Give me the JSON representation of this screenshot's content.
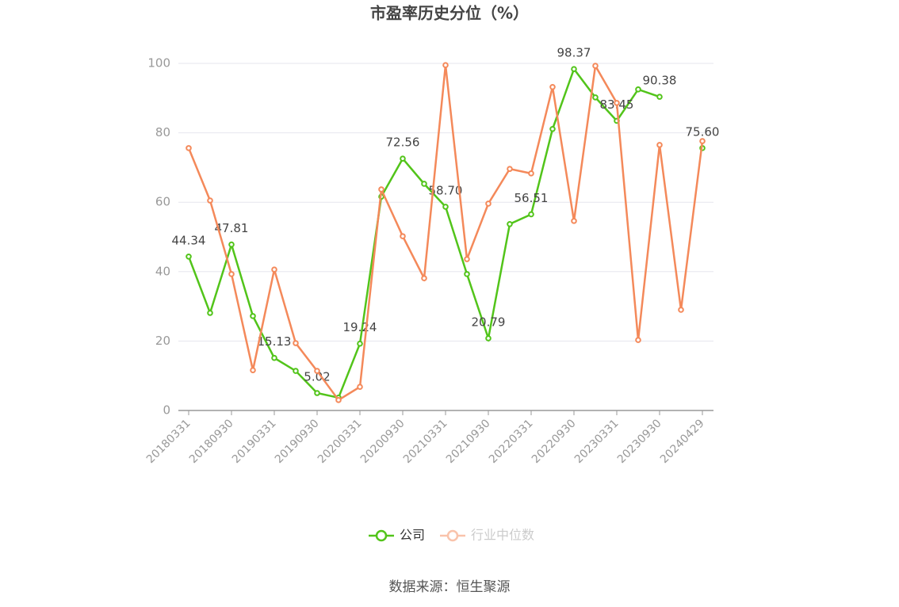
{
  "chart_data": {
    "type": "line",
    "title": "市盈率历史分位（%）",
    "source": "数据来源：恒生聚源",
    "categories": [
      "20180331",
      null,
      "20180930",
      null,
      "20190331",
      null,
      "20190930",
      null,
      "20200331",
      null,
      "20200930",
      null,
      "20210331",
      null,
      "20210930",
      null,
      "20220331",
      null,
      "20220930",
      null,
      "20230331",
      null,
      "20230930",
      null,
      "20240429"
    ],
    "ylim": [
      0,
      100
    ],
    "yticks": [
      0,
      20,
      40,
      60,
      80,
      100
    ],
    "grid": true,
    "legend": "bottom",
    "series": [
      {
        "name": "公司",
        "color": "#52c41a",
        "values": [
          44.34,
          28.1,
          47.81,
          27.2,
          15.13,
          11.4,
          5.02,
          3.7,
          19.24,
          61.6,
          72.56,
          65.3,
          58.7,
          39.3,
          20.79,
          53.7,
          56.51,
          81.1,
          98.37,
          90.2,
          83.45,
          92.5,
          90.38,
          null,
          75.6
        ],
        "value_labels": [
          "44.34",
          null,
          "47.81",
          null,
          "15.13",
          null,
          "5.02",
          null,
          "19.24",
          null,
          "72.56",
          null,
          "58.70",
          null,
          "20.79",
          null,
          "56.51",
          null,
          "98.37",
          null,
          "83.45",
          null,
          "90.38",
          null,
          "75.60"
        ]
      },
      {
        "name": "行业中位数",
        "color": "#f4895a",
        "values": [
          75.6,
          60.5,
          39.3,
          11.6,
          40.6,
          19.4,
          11.4,
          3.0,
          6.8,
          63.7,
          50.2,
          38.1,
          99.5,
          43.6,
          59.6,
          69.6,
          68.3,
          93.2,
          54.6,
          99.3,
          88.6,
          20.3,
          76.5,
          29.0,
          77.6
        ]
      }
    ]
  }
}
